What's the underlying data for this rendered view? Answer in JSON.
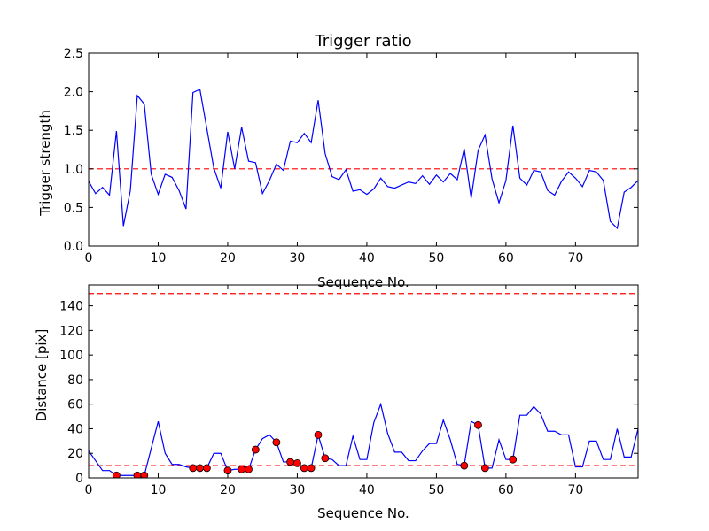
{
  "chart_data": [
    {
      "type": "line",
      "title": "Trigger ratio",
      "xlabel": "Sequence No.",
      "ylabel": "Trigger strength",
      "xlim": [
        0,
        79
      ],
      "ylim": [
        0,
        2.5
      ],
      "xticks": [
        0,
        10,
        20,
        30,
        40,
        50,
        60,
        70
      ],
      "xtick_labels": [
        "0",
        "10",
        "20",
        "30",
        "40",
        "50",
        "60",
        "70"
      ],
      "yticks": [
        0,
        0.5,
        1.0,
        1.5,
        2.0,
        2.5
      ],
      "ytick_labels": [
        "0.0",
        "0.5",
        "1.0",
        "1.5",
        "2.0",
        "2.5"
      ],
      "grid": false,
      "series": [
        {
          "name": "trigger strength",
          "color": "#0000ff",
          "x": [
            0,
            1,
            2,
            3,
            4,
            5,
            6,
            7,
            8,
            9,
            10,
            11,
            12,
            13,
            14,
            15,
            16,
            17,
            18,
            19,
            20,
            21,
            22,
            23,
            24,
            25,
            26,
            27,
            28,
            29,
            30,
            31,
            32,
            33,
            34,
            35,
            36,
            37,
            38,
            39,
            40,
            41,
            42,
            43,
            44,
            45,
            46,
            47,
            48,
            49,
            50,
            51,
            52,
            53,
            54,
            55,
            56,
            57,
            58,
            59,
            60,
            61,
            62,
            63,
            64,
            65,
            66,
            67,
            68,
            69,
            70,
            71,
            72,
            73,
            74,
            75,
            76,
            77,
            78,
            79
          ],
          "values": [
            0.84,
            0.68,
            0.76,
            0.66,
            1.49,
            0.26,
            0.72,
            1.95,
            1.84,
            0.93,
            0.67,
            0.93,
            0.89,
            0.72,
            0.48,
            1.99,
            2.03,
            1.52,
            1.01,
            0.75,
            1.48,
            1.0,
            1.54,
            1.1,
            1.08,
            0.68,
            0.85,
            1.06,
            0.98,
            1.36,
            1.34,
            1.46,
            1.34,
            1.89,
            1.2,
            0.9,
            0.86,
            0.99,
            0.71,
            0.73,
            0.67,
            0.74,
            0.88,
            0.77,
            0.75,
            0.79,
            0.83,
            0.81,
            0.91,
            0.8,
            0.92,
            0.83,
            0.94,
            0.86,
            1.26,
            0.62,
            1.24,
            1.44,
            0.87,
            0.56,
            0.85,
            1.56,
            0.88,
            0.79,
            0.98,
            0.96,
            0.72,
            0.66,
            0.84,
            0.96,
            0.88,
            0.77,
            0.98,
            0.96,
            0.85,
            0.32,
            0.23,
            0.7,
            0.76,
            0.85
          ]
        }
      ],
      "hlines": [
        {
          "y": 1.0,
          "color": "#ff0000",
          "style": "dashed"
        }
      ]
    },
    {
      "type": "line",
      "title": "",
      "xlabel": "Sequence No.",
      "ylabel": "Distance [pix]",
      "xlim": [
        0,
        79
      ],
      "ylim": [
        0,
        157
      ],
      "xticks": [
        0,
        10,
        20,
        30,
        40,
        50,
        60,
        70
      ],
      "xtick_labels": [
        "0",
        "10",
        "20",
        "30",
        "40",
        "50",
        "60",
        "70"
      ],
      "yticks": [
        0,
        20,
        40,
        60,
        80,
        100,
        120,
        140
      ],
      "ytick_labels": [
        "0",
        "20",
        "40",
        "60",
        "80",
        "100",
        "120",
        "140"
      ],
      "grid": false,
      "series": [
        {
          "name": "distance",
          "color": "#0000ff",
          "x": [
            0,
            1,
            2,
            3,
            4,
            5,
            6,
            7,
            8,
            9,
            10,
            11,
            12,
            13,
            14,
            15,
            16,
            17,
            18,
            19,
            20,
            21,
            22,
            23,
            24,
            25,
            26,
            27,
            28,
            29,
            30,
            31,
            32,
            33,
            34,
            35,
            36,
            37,
            38,
            39,
            40,
            41,
            42,
            43,
            44,
            45,
            46,
            47,
            48,
            49,
            50,
            51,
            52,
            53,
            54,
            55,
            56,
            57,
            58,
            59,
            60,
            61,
            62,
            63,
            64,
            65,
            66,
            67,
            68,
            69,
            70,
            71,
            72,
            73,
            74,
            75,
            76,
            77,
            78,
            79
          ],
          "values": [
            22,
            14,
            6,
            6,
            2,
            2,
            2,
            2,
            2,
            24,
            46,
            20,
            11,
            11,
            9,
            8,
            8,
            8,
            20,
            20,
            6,
            7,
            7,
            7,
            23,
            32,
            35,
            29,
            13,
            13,
            12,
            8,
            8,
            35,
            16,
            15,
            10,
            10,
            34,
            15,
            15,
            45,
            60,
            36,
            21,
            21,
            14,
            14,
            22,
            28,
            28,
            47,
            31,
            11,
            10,
            46,
            43,
            8,
            8,
            31,
            15,
            15,
            51,
            51,
            58,
            52,
            38,
            38,
            35,
            35,
            9,
            9,
            30,
            30,
            15,
            15,
            40,
            17,
            17,
            40
          ]
        },
        {
          "name": "triggered",
          "type": "scatter",
          "color": "#ff0000",
          "edgecolor": "#000000",
          "points": [
            [
              4,
              2
            ],
            [
              7,
              2
            ],
            [
              8,
              2
            ],
            [
              15,
              8
            ],
            [
              16,
              8
            ],
            [
              17,
              8
            ],
            [
              20,
              6
            ],
            [
              22,
              7
            ],
            [
              23,
              7
            ],
            [
              24,
              23
            ],
            [
              27,
              29
            ],
            [
              29,
              13
            ],
            [
              30,
              12
            ],
            [
              31,
              8
            ],
            [
              32,
              8
            ],
            [
              33,
              35
            ],
            [
              34,
              16
            ],
            [
              54,
              10
            ],
            [
              56,
              43
            ],
            [
              57,
              8
            ],
            [
              61,
              15
            ]
          ]
        }
      ],
      "hlines": [
        {
          "y": 150,
          "color": "#ff0000",
          "style": "dashed"
        },
        {
          "y": 10,
          "color": "#ff0000",
          "style": "dashed"
        }
      ]
    }
  ]
}
